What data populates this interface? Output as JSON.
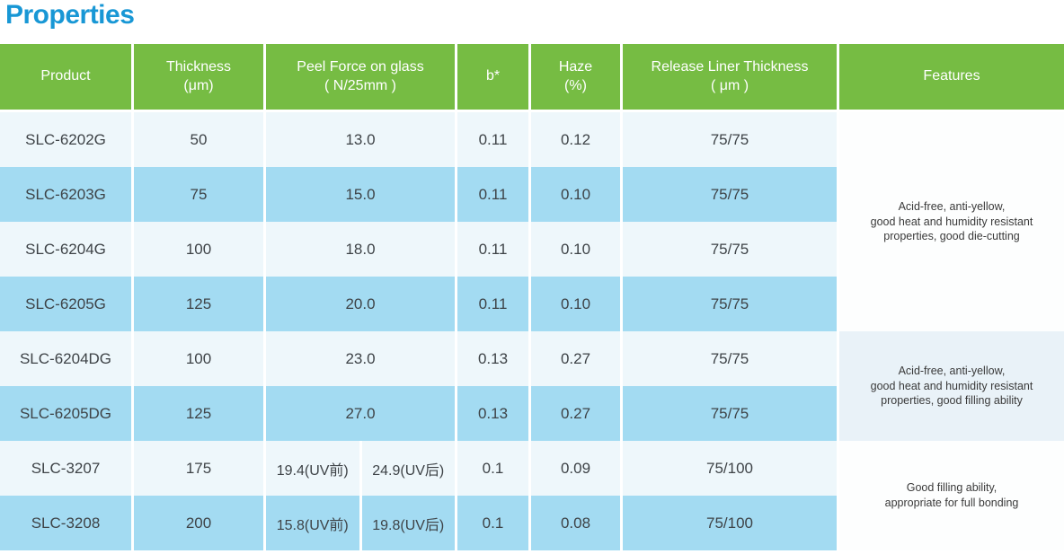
{
  "page": {
    "title": "Properties"
  },
  "colors": {
    "header_green": "#76BC43",
    "row_light": "#EEF7FB",
    "row_blue": "#A3DBF2",
    "features_white": "#FDFEFE",
    "features_alt": "#E9F2F8",
    "title_blue": "#1897D5",
    "text_dark": "#3E4347"
  },
  "table": {
    "columns": [
      {
        "label": "Product"
      },
      {
        "label": "Thickness\n(μm)"
      },
      {
        "label": "Peel Force on glass\n( N/25mm )"
      },
      {
        "label": "b*"
      },
      {
        "label": "Haze\n(%)"
      },
      {
        "label": "Release Liner Thickness\n( μm )"
      },
      {
        "label": "Features"
      }
    ],
    "rows": [
      {
        "product": "SLC-6202G",
        "thickness": "50",
        "peel": "13.0",
        "b_star": "0.11",
        "haze": "0.12",
        "release_liner": "75/75"
      },
      {
        "product": "SLC-6203G",
        "thickness": "75",
        "peel": "15.0",
        "b_star": "0.11",
        "haze": "0.10",
        "release_liner": "75/75"
      },
      {
        "product": "SLC-6204G",
        "thickness": "100",
        "peel": "18.0",
        "b_star": "0.11",
        "haze": "0.10",
        "release_liner": "75/75"
      },
      {
        "product": "SLC-6205G",
        "thickness": "125",
        "peel": "20.0",
        "b_star": "0.11",
        "haze": "0.10",
        "release_liner": "75/75"
      },
      {
        "product": "SLC-6204DG",
        "thickness": "100",
        "peel": "23.0",
        "b_star": "0.13",
        "haze": "0.27",
        "release_liner": "75/75"
      },
      {
        "product": "SLC-6205DG",
        "thickness": "125",
        "peel": "27.0",
        "b_star": "0.13",
        "haze": "0.27",
        "release_liner": "75/75"
      },
      {
        "product": "SLC-3207",
        "thickness": "175",
        "peel_pre_uv": "19.4(UV前)",
        "peel_post_uv": "24.9(UV后)",
        "b_star": "0.1",
        "haze": "0.09",
        "release_liner": "75/100"
      },
      {
        "product": "SLC-3208",
        "thickness": "200",
        "peel_pre_uv": "15.8(UV前)",
        "peel_post_uv": "19.8(UV后)",
        "b_star": "0.1",
        "haze": "0.08",
        "release_liner": "75/100"
      }
    ],
    "feature_groups": [
      {
        "span_rows": 4,
        "text": "Acid-free, anti-yellow,\ngood heat and humidity resistant\nproperties, good die-cutting"
      },
      {
        "span_rows": 2,
        "text": "Acid-free, anti-yellow,\ngood heat and humidity resistant\nproperties, good filling ability"
      },
      {
        "span_rows": 2,
        "text": "Good filling ability,\nappropriate for full bonding"
      }
    ]
  }
}
